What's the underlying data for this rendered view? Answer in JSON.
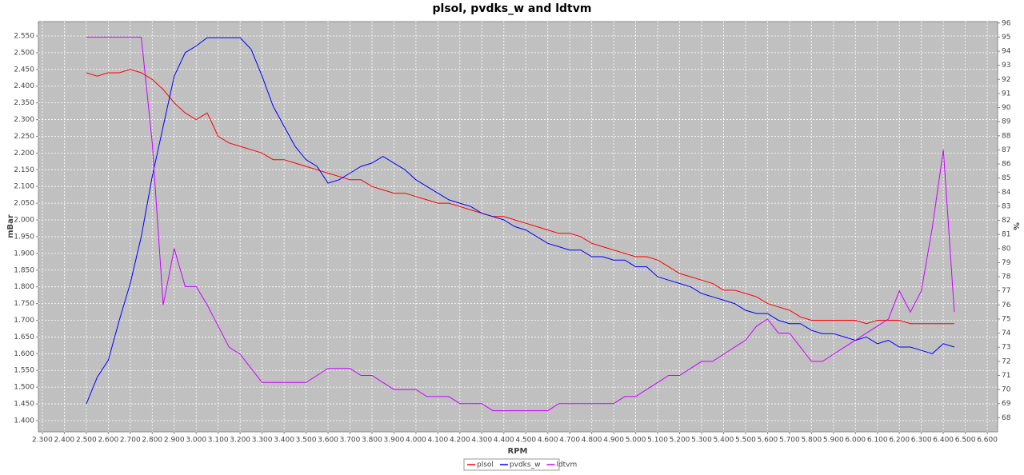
{
  "chart_data": {
    "type": "line",
    "title": "plsol, pvdks_w and ldtvm",
    "xlabel": "RPM",
    "ylabel": "mBar",
    "y2label": "%",
    "x": [
      2500,
      2550,
      2600,
      2650,
      2700,
      2750,
      2800,
      2850,
      2900,
      2950,
      3000,
      3050,
      3100,
      3150,
      3200,
      3250,
      3300,
      3350,
      3400,
      3450,
      3500,
      3550,
      3600,
      3650,
      3700,
      3750,
      3800,
      3850,
      3900,
      3950,
      4000,
      4050,
      4100,
      4150,
      4200,
      4250,
      4300,
      4350,
      4400,
      4450,
      4500,
      4550,
      4600,
      4650,
      4700,
      4750,
      4800,
      4850,
      4900,
      4950,
      5000,
      5050,
      5100,
      5150,
      5200,
      5250,
      5300,
      5350,
      5400,
      5450,
      5500,
      5550,
      5600,
      5650,
      5700,
      5750,
      5800,
      5850,
      5900,
      5950,
      6000,
      6050,
      6100,
      6150,
      6200,
      6250,
      6300,
      6350,
      6400,
      6450
    ],
    "series": [
      {
        "name": "plsol",
        "color": "#ff0000",
        "values": [
          2.44,
          2.43,
          2.44,
          2.44,
          2.45,
          2.44,
          2.42,
          2.39,
          2.35,
          2.32,
          2.3,
          2.32,
          2.25,
          2.23,
          2.22,
          2.21,
          2.2,
          2.18,
          2.18,
          2.17,
          2.16,
          2.15,
          2.14,
          2.13,
          2.12,
          2.12,
          2.1,
          2.09,
          2.08,
          2.08,
          2.07,
          2.06,
          2.05,
          2.05,
          2.04,
          2.03,
          2.02,
          2.01,
          2.01,
          2.0,
          1.99,
          1.98,
          1.97,
          1.96,
          1.96,
          1.95,
          1.93,
          1.92,
          1.91,
          1.9,
          1.89,
          1.89,
          1.88,
          1.86,
          1.84,
          1.83,
          1.82,
          1.81,
          1.79,
          1.79,
          1.78,
          1.77,
          1.75,
          1.74,
          1.73,
          1.71,
          1.7,
          1.7,
          1.7,
          1.7,
          1.7,
          1.69,
          1.7,
          1.7,
          1.7,
          1.69,
          1.69,
          1.69,
          1.69,
          1.69
        ]
      },
      {
        "name": "pvdks_w",
        "color": "#0000ff",
        "values": [
          1.45,
          1.53,
          1.58,
          1.7,
          1.81,
          1.95,
          2.13,
          2.28,
          2.43,
          2.5,
          2.52,
          2.545,
          2.545,
          2.545,
          2.545,
          2.51,
          2.43,
          2.34,
          2.28,
          2.22,
          2.18,
          2.16,
          2.11,
          2.12,
          2.14,
          2.16,
          2.17,
          2.19,
          2.17,
          2.15,
          2.12,
          2.1,
          2.08,
          2.06,
          2.05,
          2.04,
          2.02,
          2.01,
          2.0,
          1.98,
          1.97,
          1.95,
          1.93,
          1.92,
          1.91,
          1.91,
          1.89,
          1.89,
          1.88,
          1.88,
          1.86,
          1.86,
          1.83,
          1.82,
          1.81,
          1.8,
          1.78,
          1.77,
          1.76,
          1.75,
          1.73,
          1.72,
          1.72,
          1.7,
          1.69,
          1.69,
          1.67,
          1.66,
          1.66,
          1.65,
          1.64,
          1.65,
          1.63,
          1.64,
          1.62,
          1.62,
          1.61,
          1.6,
          1.63,
          1.62
        ]
      },
      {
        "name": "ldtvm",
        "color": "#cc00ff",
        "axis": "y2",
        "values": [
          95,
          95,
          95,
          95,
          95,
          95,
          87.5,
          76,
          80,
          77.3,
          77.3,
          76,
          74.5,
          73,
          72.5,
          71.5,
          70.5,
          70.5,
          70.5,
          70.5,
          70.5,
          71,
          71.5,
          71.5,
          71.5,
          71,
          71,
          70.5,
          70,
          70,
          70,
          69.5,
          69.5,
          69.5,
          69,
          69,
          69,
          68.5,
          68.5,
          68.5,
          68.5,
          68.5,
          68.5,
          69,
          69,
          69,
          69,
          69,
          69,
          69.5,
          69.5,
          70,
          70.5,
          71,
          71,
          71.5,
          72,
          72,
          72.5,
          73,
          73.5,
          74.5,
          75,
          74,
          74,
          73,
          72,
          72,
          72.5,
          73,
          73.5,
          74,
          74.5,
          75,
          77,
          75.5,
          77,
          81.5,
          87,
          75.5
        ]
      }
    ],
    "xlim": [
      2282,
      6647
    ],
    "xticks": [
      {
        "value": 2300,
        "label": "2.300"
      },
      {
        "value": 2400,
        "label": "2.400"
      },
      {
        "value": 2500,
        "label": "2.500"
      },
      {
        "value": 2600,
        "label": "2.600"
      },
      {
        "value": 2700,
        "label": "2.700"
      },
      {
        "value": 2800,
        "label": "2.800"
      },
      {
        "value": 2900,
        "label": "2.900"
      },
      {
        "value": 3000,
        "label": "3.000"
      },
      {
        "value": 3100,
        "label": "3.100"
      },
      {
        "value": 3200,
        "label": "3.200"
      },
      {
        "value": 3300,
        "label": "3.300"
      },
      {
        "value": 3400,
        "label": "3.400"
      },
      {
        "value": 3500,
        "label": "3.500"
      },
      {
        "value": 3600,
        "label": "3.600"
      },
      {
        "value": 3700,
        "label": "3.700"
      },
      {
        "value": 3800,
        "label": "3.800"
      },
      {
        "value": 3900,
        "label": "3.900"
      },
      {
        "value": 4000,
        "label": "4.000"
      },
      {
        "value": 4100,
        "label": "4.100"
      },
      {
        "value": 4200,
        "label": "4.200"
      },
      {
        "value": 4300,
        "label": "4.300"
      },
      {
        "value": 4400,
        "label": "4.400"
      },
      {
        "value": 4500,
        "label": "4.500"
      },
      {
        "value": 4600,
        "label": "4.600"
      },
      {
        "value": 4700,
        "label": "4.700"
      },
      {
        "value": 4800,
        "label": "4.800"
      },
      {
        "value": 4900,
        "label": "4.900"
      },
      {
        "value": 5000,
        "label": "5.000"
      },
      {
        "value": 5100,
        "label": "5.100"
      },
      {
        "value": 5200,
        "label": "5.200"
      },
      {
        "value": 5300,
        "label": "5.300"
      },
      {
        "value": 5400,
        "label": "5.400"
      },
      {
        "value": 5500,
        "label": "5.500"
      },
      {
        "value": 5600,
        "label": "5.600"
      },
      {
        "value": 5700,
        "label": "5.700"
      },
      {
        "value": 5800,
        "label": "5.800"
      },
      {
        "value": 5900,
        "label": "5.900"
      },
      {
        "value": 6000,
        "label": "6.000"
      },
      {
        "value": 6100,
        "label": "6.100"
      },
      {
        "value": 6200,
        "label": "6.200"
      },
      {
        "value": 6300,
        "label": "6.300"
      },
      {
        "value": 6400,
        "label": "6.400"
      },
      {
        "value": 6500,
        "label": "6.500"
      },
      {
        "value": 6600,
        "label": "6.600"
      }
    ],
    "ylim": [
      1.3665,
      2.593
    ],
    "yticks": [
      {
        "value": 1.4,
        "label": "1.400"
      },
      {
        "value": 1.45,
        "label": "1.450"
      },
      {
        "value": 1.5,
        "label": "1.500"
      },
      {
        "value": 1.55,
        "label": "1.550"
      },
      {
        "value": 1.6,
        "label": "1.600"
      },
      {
        "value": 1.65,
        "label": "1.650"
      },
      {
        "value": 1.7,
        "label": "1.700"
      },
      {
        "value": 1.75,
        "label": "1.750"
      },
      {
        "value": 1.8,
        "label": "1.800"
      },
      {
        "value": 1.85,
        "label": "1.850"
      },
      {
        "value": 1.9,
        "label": "1.900"
      },
      {
        "value": 1.95,
        "label": "1.950"
      },
      {
        "value": 2.0,
        "label": "2.000"
      },
      {
        "value": 2.05,
        "label": "2.050"
      },
      {
        "value": 2.1,
        "label": "2.100"
      },
      {
        "value": 2.15,
        "label": "2.150"
      },
      {
        "value": 2.2,
        "label": "2.200"
      },
      {
        "value": 2.25,
        "label": "2.250"
      },
      {
        "value": 2.3,
        "label": "2.300"
      },
      {
        "value": 2.35,
        "label": "2.350"
      },
      {
        "value": 2.4,
        "label": "2.400"
      },
      {
        "value": 2.45,
        "label": "2.450"
      },
      {
        "value": 2.5,
        "label": "2.500"
      },
      {
        "value": 2.55,
        "label": "2.550"
      }
    ],
    "y2lim": [
      67,
      96.1
    ],
    "y2ticks": [
      68,
      69,
      70,
      71,
      72,
      73,
      74,
      75,
      76,
      77,
      78,
      79,
      80,
      81,
      82,
      83,
      84,
      85,
      86,
      87,
      88,
      89,
      90,
      91,
      92,
      93,
      94,
      95,
      96
    ],
    "grid": true,
    "legend": "bottom"
  }
}
